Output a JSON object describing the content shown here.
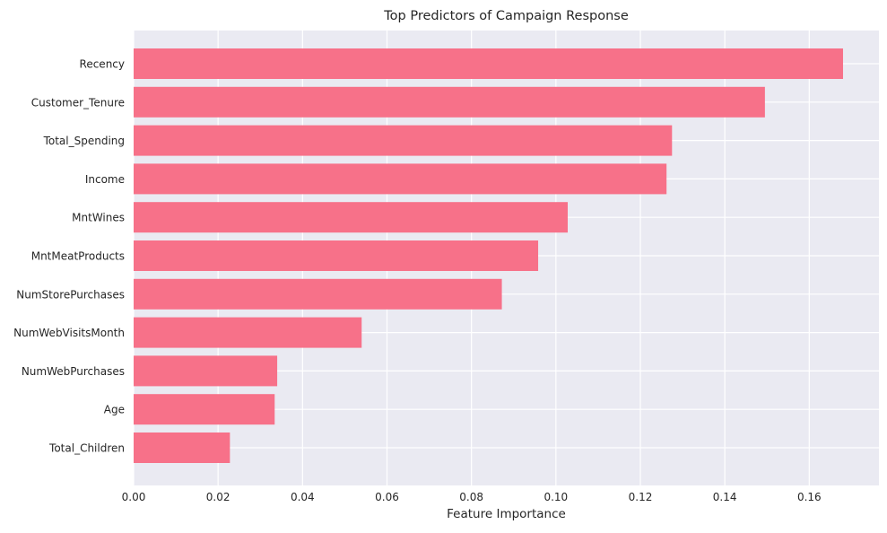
{
  "chart_data": {
    "type": "bar",
    "orientation": "horizontal",
    "title": "Top Predictors of Campaign Response",
    "xlabel": "Feature Importance",
    "ylabel": "",
    "xlim": [
      0.0,
      0.1765
    ],
    "xticks": [
      0.0,
      0.02,
      0.04,
      0.06,
      0.08,
      0.1,
      0.12,
      0.14,
      0.16
    ],
    "xtick_labels": [
      "0.00",
      "0.02",
      "0.04",
      "0.06",
      "0.08",
      "0.10",
      "0.12",
      "0.14",
      "0.16"
    ],
    "grid": true,
    "categories": [
      "Recency",
      "Customer_Tenure",
      "Total_Spending",
      "Income",
      "MntWines",
      "MntMeatProducts",
      "NumStorePurchases",
      "NumWebVisitsMonth",
      "NumWebPurchases",
      "Age",
      "Total_Children"
    ],
    "values": [
      0.168,
      0.1495,
      0.1275,
      0.1262,
      0.1028,
      0.0958,
      0.0872,
      0.054,
      0.034,
      0.0334,
      0.0228
    ]
  },
  "colors": {
    "bar": "#f77189",
    "plot_background": "#eaeaf2",
    "grid": "#ffffff",
    "text": "#262626"
  }
}
